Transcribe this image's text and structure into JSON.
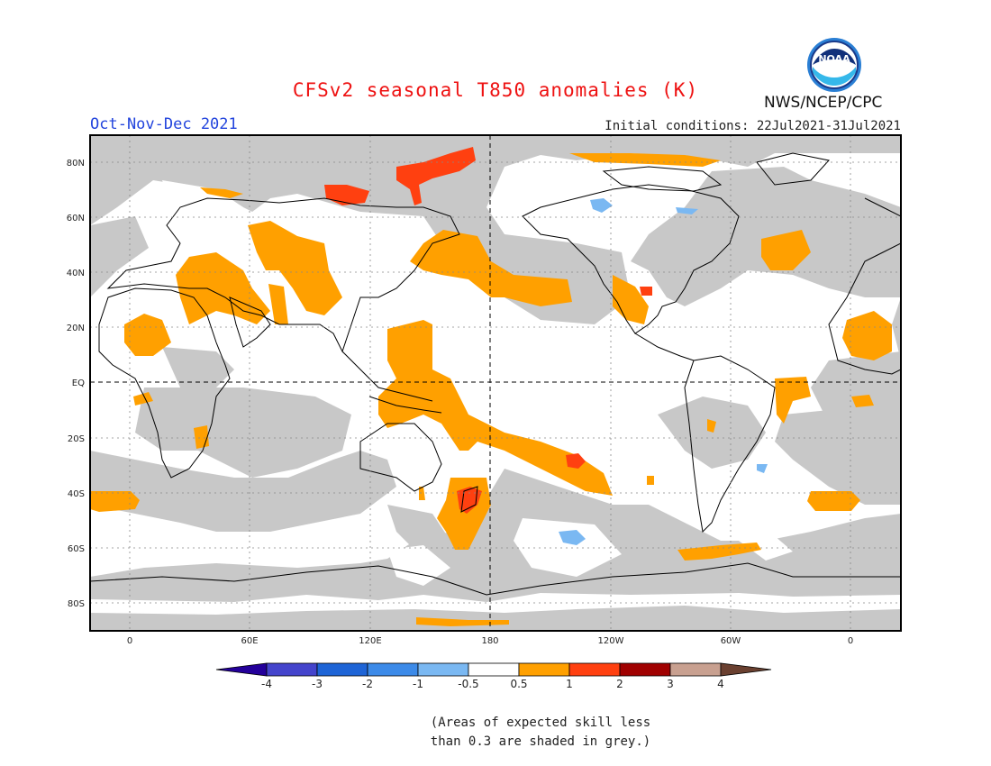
{
  "title": "CFSv2 seasonal T850 anomalies (K)",
  "season": "Oct-Nov-Dec 2021",
  "initial_conditions": "Initial conditions: 22Jul2021-31Jul2021",
  "agency": "NWS/NCEP/CPC",
  "logo_text": "NOAA",
  "lat_labels": [
    "80N",
    "60N",
    "40N",
    "20N",
    "EQ",
    "20S",
    "40S",
    "60S",
    "80S"
  ],
  "lon_labels": [
    "0",
    "60E",
    "120E",
    "180",
    "120W",
    "60W",
    "0"
  ],
  "colorbar": {
    "labels": [
      "-4",
      "-3",
      "-2",
      "-1",
      "-0.5",
      "0.5",
      "1",
      "2",
      "3",
      "4"
    ],
    "colors": [
      "#24009a",
      "#4444cc",
      "#1e64d6",
      "#3c8ae8",
      "#7ab8f2",
      "#ffffff",
      "#ffa000",
      "#ff4010",
      "#a00000",
      "#c8a090",
      "#6a4030"
    ]
  },
  "legend_note": "(Areas of expected skill less\nthan 0.3 are shaded in grey.)",
  "colors": {
    "grey": "#c8c8c8",
    "orange": "#ffa000",
    "red": "#ff4010",
    "light_blue": "#7ab8f2"
  }
}
